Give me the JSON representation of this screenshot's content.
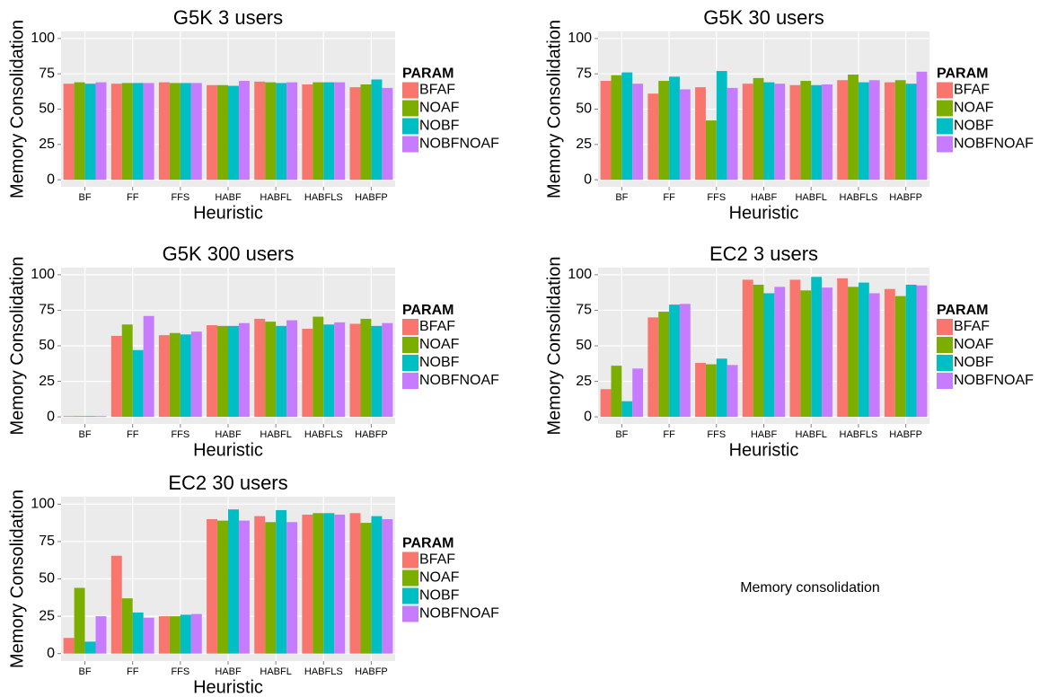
{
  "chart_data": [
    {
      "type": "bar",
      "title": "G5K 3 users",
      "xlabel": "Heuristic",
      "ylabel": "Memory Consolidation",
      "legend_title": "PARAM",
      "categories": [
        "BF",
        "FF",
        "FFS",
        "HABF",
        "HABFL",
        "HABFLS",
        "HABFP"
      ],
      "series": [
        {
          "name": "BFAF",
          "color": "#F8766D",
          "values": [
            68,
            68,
            69,
            67,
            69.5,
            67.5,
            65.5
          ]
        },
        {
          "name": "NOAF",
          "color": "#7CAE00",
          "values": [
            69,
            68.5,
            68.5,
            67,
            69,
            69,
            67.5
          ]
        },
        {
          "name": "NOBF",
          "color": "#00BFC4",
          "values": [
            68,
            68.5,
            68.5,
            66.5,
            68.5,
            69,
            71
          ]
        },
        {
          "name": "NOBFNOAF",
          "color": "#C77CFF",
          "values": [
            69,
            68.5,
            68.5,
            70,
            69,
            69,
            65
          ]
        }
      ],
      "ylim": [
        -5,
        105
      ],
      "yticks": [
        0,
        25,
        50,
        75,
        100
      ],
      "grid": true
    },
    {
      "type": "bar",
      "title": "G5K 30 users",
      "xlabel": "Heuristic",
      "ylabel": "Memory Consolidation",
      "legend_title": "PARAM",
      "categories": [
        "BF",
        "FF",
        "FFS",
        "HABF",
        "HABFL",
        "HABFLS",
        "HABFP"
      ],
      "series": [
        {
          "name": "BFAF",
          "color": "#F8766D",
          "values": [
            70,
            61,
            65.5,
            68,
            67,
            70.5,
            69
          ]
        },
        {
          "name": "NOAF",
          "color": "#7CAE00",
          "values": [
            74,
            70,
            42,
            72,
            70,
            74.5,
            70.5
          ]
        },
        {
          "name": "NOBF",
          "color": "#00BFC4",
          "values": [
            76,
            73,
            77,
            69,
            67,
            69,
            68
          ]
        },
        {
          "name": "NOBFNOAF",
          "color": "#C77CFF",
          "values": [
            68,
            64,
            65,
            68,
            67.5,
            70.5,
            76.5
          ]
        }
      ],
      "ylim": [
        -5,
        105
      ],
      "yticks": [
        0,
        25,
        50,
        75,
        100
      ],
      "grid": true
    },
    {
      "type": "bar",
      "title": "G5K 300 users",
      "xlabel": "Heuristic",
      "ylabel": "Memory Consolidation",
      "legend_title": "PARAM",
      "categories": [
        "BF",
        "FF",
        "FFS",
        "HABF",
        "HABFL",
        "HABFLS",
        "HABFP"
      ],
      "series": [
        {
          "name": "BFAF",
          "color": "#F8766D",
          "values": [
            0.5,
            57,
            57.5,
            64.5,
            69,
            62,
            65.5
          ]
        },
        {
          "name": "NOAF",
          "color": "#7CAE00",
          "values": [
            0.5,
            65,
            59,
            64,
            67,
            70.5,
            69
          ]
        },
        {
          "name": "NOBF",
          "color": "#00BFC4",
          "values": [
            0.5,
            47,
            58,
            64,
            64,
            65,
            64
          ]
        },
        {
          "name": "NOBFNOAF",
          "color": "#C77CFF",
          "values": [
            0.5,
            71,
            60,
            66,
            68,
            66.5,
            66
          ]
        }
      ],
      "ylim": [
        -5,
        105
      ],
      "yticks": [
        0,
        25,
        50,
        75,
        100
      ],
      "grid": true
    },
    {
      "type": "bar",
      "title": "EC2 3 users",
      "xlabel": "Heuristic",
      "ylabel": "Memory Consolidation",
      "legend_title": "PARAM",
      "categories": [
        "BF",
        "FF",
        "FFS",
        "HABF",
        "HABFL",
        "HABFLS",
        "HABFP"
      ],
      "series": [
        {
          "name": "BFAF",
          "color": "#F8766D",
          "values": [
            19.5,
            70,
            38,
            96.5,
            96.5,
            97.5,
            90
          ]
        },
        {
          "name": "NOAF",
          "color": "#7CAE00",
          "values": [
            36,
            74,
            37,
            93,
            89,
            91.5,
            85
          ]
        },
        {
          "name": "NOBF",
          "color": "#00BFC4",
          "values": [
            11,
            79,
            41,
            87,
            98.5,
            94.5,
            93
          ]
        },
        {
          "name": "NOBFNOAF",
          "color": "#C77CFF",
          "values": [
            34,
            79.5,
            36.5,
            91.5,
            91,
            87,
            92.5
          ]
        }
      ],
      "ylim": [
        -5,
        105
      ],
      "yticks": [
        0,
        25,
        50,
        75,
        100
      ],
      "grid": true
    },
    {
      "type": "bar",
      "title": "EC2 30 users",
      "xlabel": "Heuristic",
      "ylabel": "Memory Consolidation",
      "legend_title": "PARAM",
      "categories": [
        "BF",
        "FF",
        "FFS",
        "HABF",
        "HABFL",
        "HABFLS",
        "HABFP"
      ],
      "series": [
        {
          "name": "BFAF",
          "color": "#F8766D",
          "values": [
            10.5,
            65.5,
            25,
            90,
            92,
            93,
            94
          ]
        },
        {
          "name": "NOAF",
          "color": "#7CAE00",
          "values": [
            44,
            37,
            25,
            89,
            88,
            94,
            87.5
          ]
        },
        {
          "name": "NOBF",
          "color": "#00BFC4",
          "values": [
            8,
            27.5,
            26,
            96.5,
            96,
            94,
            92
          ]
        },
        {
          "name": "NOBFNOAF",
          "color": "#C77CFF",
          "values": [
            25,
            24,
            26.5,
            89,
            88,
            93,
            90
          ]
        }
      ],
      "ylim": [
        -5,
        105
      ],
      "yticks": [
        0,
        25,
        50,
        75,
        100
      ],
      "grid": true
    }
  ],
  "caption": "Memory consolidation"
}
